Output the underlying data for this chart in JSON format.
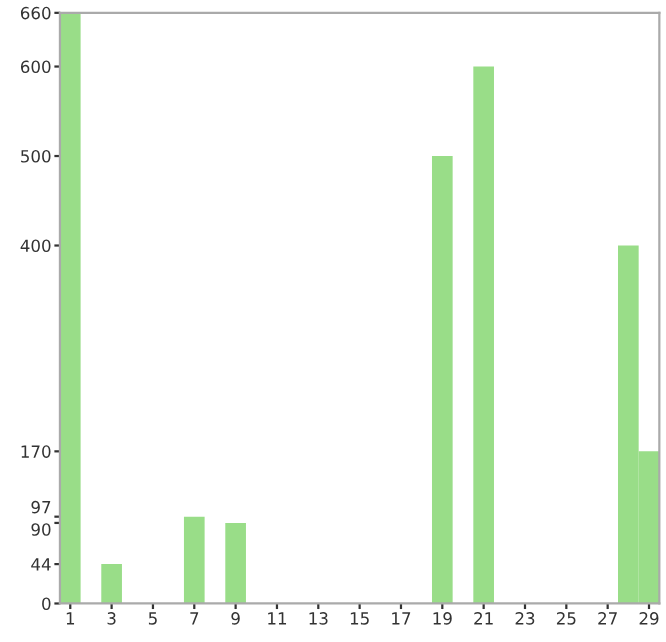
{
  "chart_data": {
    "type": "bar",
    "categories": [
      "1",
      null,
      "3",
      null,
      "5",
      null,
      "7",
      null,
      "9",
      null,
      "11",
      null,
      "13",
      null,
      "15",
      null,
      "17",
      null,
      "19",
      null,
      "21",
      null,
      "23",
      null,
      "25",
      null,
      "27",
      null,
      "29"
    ],
    "values": [
      660,
      0,
      44,
      0,
      0,
      0,
      97,
      0,
      90,
      0,
      0,
      0,
      0,
      0,
      0,
      0,
      0,
      0,
      500,
      0,
      600,
      0,
      0,
      0,
      0,
      0,
      0,
      400,
      170
    ],
    "color": "#99dd88",
    "ylim": [
      0,
      660
    ],
    "yticks": [
      0,
      44,
      90,
      97,
      170,
      400,
      500,
      600,
      660
    ],
    "grid": false
  }
}
